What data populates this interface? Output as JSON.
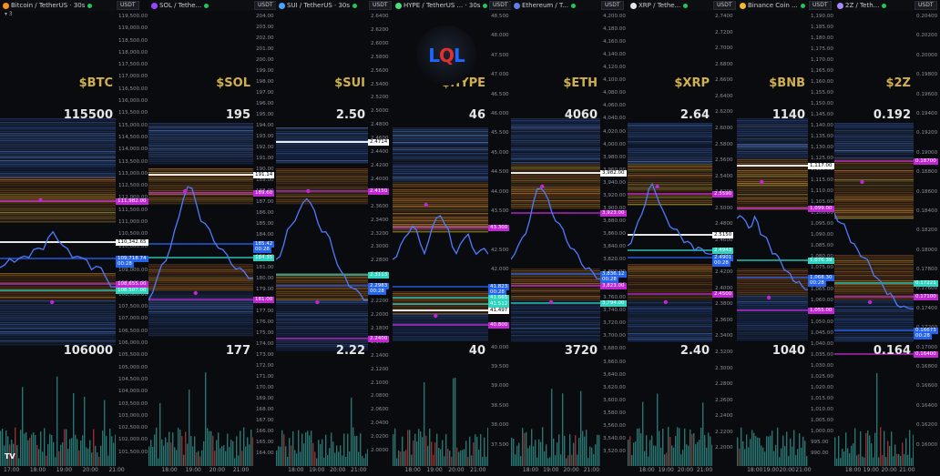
{
  "currency": "USDT",
  "logo": {
    "left": "L",
    "mid": "Q",
    "right": "L"
  },
  "tv_logo": "TV",
  "menu_hint": "▾ 3",
  "time_labels": [
    "17:00",
    "18:00",
    "19:00",
    "20:00",
    "21:00"
  ],
  "panels": [
    {
      "name": "btc",
      "title": "Bitcoin / TetherUS · 30s",
      "coin_color": "#f7931a",
      "ticker": "$BTC",
      "top": "115500",
      "bottom": "106000",
      "yticks": [
        "119,500.00",
        "119,000.00",
        "118,500.00",
        "118,000.00",
        "117,500.00",
        "117,000.00",
        "116,500.00",
        "116,000.00",
        "115,500.00",
        "115,000.00",
        "114,500.00",
        "114,000.00",
        "113,500.00",
        "113,000.00",
        "112,500.00",
        "112,000.00",
        "111,500.00",
        "111,000.00",
        "110,500.00",
        "110,000.00",
        "109,500.00",
        "109,000.00",
        "108,500.00",
        "108,000.00",
        "107,500.00",
        "107,000.00",
        "106,500.00",
        "106,000.00",
        "105,500.00",
        "105,000.00",
        "104,500.00",
        "104,000.00",
        "103,500.00",
        "103,000.00",
        "102,500.00",
        "102,000.00",
        "101,500.00"
      ],
      "tags": [
        {
          "t": "111,982.00",
          "c": "#c026d3"
        },
        {
          "t": "110,342.65",
          "c": "#ffffff"
        },
        {
          "t": "109,718.74",
          "c": "#2563eb"
        },
        {
          "t": "00:28",
          "c": "#2563eb"
        },
        {
          "t": "108,655.00",
          "c": "#c026d3"
        },
        {
          "t": "108,507.00",
          "c": "#2dd4bf"
        }
      ],
      "series": [
        0.42,
        0.44,
        0.45,
        0.43,
        0.46,
        0.47,
        0.45,
        0.48,
        0.5,
        0.49,
        0.52,
        0.55,
        0.53,
        0.5,
        0.48,
        0.46,
        0.47,
        0.45,
        0.44,
        0.42,
        0.43,
        0.41,
        0.38,
        0.36,
        0.35
      ]
    },
    {
      "name": "sol",
      "title": "SOL / Tethe...",
      "coin_color": "#9945ff",
      "ticker": "$SOL",
      "top": "195",
      "bottom": "177",
      "yticks": [
        "204.00",
        "203.00",
        "202.00",
        "201.00",
        "200.00",
        "199.00",
        "198.00",
        "197.00",
        "196.00",
        "195.00",
        "194.00",
        "193.00",
        "192.00",
        "191.00",
        "190.00",
        "189.00",
        "188.00",
        "187.00",
        "186.00",
        "185.00",
        "184.00",
        "183.00",
        "182.00",
        "181.00",
        "180.00",
        "179.00",
        "178.00",
        "177.00",
        "176.00",
        "175.00",
        "174.00",
        "173.00",
        "172.00",
        "171.00",
        "170.00",
        "169.00",
        "168.00",
        "167.00",
        "166.00",
        "165.00",
        "164.00"
      ],
      "tags": [
        {
          "t": "191.14",
          "c": "#ffffff"
        },
        {
          "t": "189.60",
          "c": "#c026d3"
        },
        {
          "t": "185.42",
          "c": "#2563eb"
        },
        {
          "t": "00:28",
          "c": "#2563eb"
        },
        {
          "t": "184.35",
          "c": "#2dd4bf"
        },
        {
          "t": "181.00",
          "c": "#c026d3"
        }
      ],
      "series": [
        0.3,
        0.34,
        0.38,
        0.42,
        0.45,
        0.5,
        0.55,
        0.6,
        0.68,
        0.72,
        0.7,
        0.65,
        0.6,
        0.58,
        0.55,
        0.52,
        0.5,
        0.48,
        0.46,
        0.44,
        0.42,
        0.41,
        0.4,
        0.39,
        0.38
      ]
    },
    {
      "name": "sui",
      "title": "SUI / TetherUS · 30s",
      "coin_color": "#4da2ff",
      "ticker": "$SUI",
      "top": "2.50",
      "bottom": "2.22",
      "yticks": [
        "2.6400",
        "2.6200",
        "2.6000",
        "2.5800",
        "2.5600",
        "2.5400",
        "2.5200",
        "2.5000",
        "2.4800",
        "2.4600",
        "2.4400",
        "2.4200",
        "2.4000",
        "2.3800",
        "2.3600",
        "2.3400",
        "2.3200",
        "2.3000",
        "2.2800",
        "2.2600",
        "2.2400",
        "2.2200",
        "2.2000",
        "2.1800",
        "2.1600",
        "2.1400",
        "2.1200",
        "2.1000",
        "2.0800",
        "2.0600",
        "2.0400",
        "2.0200",
        "2.0000"
      ],
      "tags": [
        {
          "t": "2.4714",
          "c": "#ffffff"
        },
        {
          "t": "2.4150",
          "c": "#c026d3"
        },
        {
          "t": "2.3113",
          "c": "#2dd4bf"
        },
        {
          "t": "2.2983",
          "c": "#2563eb"
        },
        {
          "t": "00:28",
          "c": "#2563eb"
        },
        {
          "t": "2.2400",
          "c": "#c026d3"
        }
      ],
      "series": [
        0.45,
        0.47,
        0.5,
        0.55,
        0.58,
        0.6,
        0.62,
        0.65,
        0.68,
        0.66,
        0.62,
        0.58,
        0.56,
        0.55,
        0.52,
        0.48,
        0.44,
        0.4,
        0.38,
        0.36,
        0.35,
        0.33,
        0.32,
        0.31,
        0.3
      ]
    },
    {
      "name": "hype",
      "title": "HYPE / TetherUS ... · 30s",
      "coin_color": "#4ade80",
      "ticker": "$HYPE",
      "top": "46",
      "bottom": "40",
      "yticks": [
        "48.500",
        "48.000",
        "47.500",
        "47.000",
        "46.500",
        "46.000",
        "45.500",
        "45.000",
        "44.500",
        "44.000",
        "43.500",
        "43.000",
        "42.500",
        "42.000",
        "41.500",
        "41.000",
        "40.500",
        "40.000",
        "39.500",
        "39.000",
        "38.500",
        "38.000",
        "37.500"
      ],
      "tags": [
        {
          "t": "43.300",
          "c": "#c026d3"
        },
        {
          "t": "41.823",
          "c": "#2563eb"
        },
        {
          "t": "00:28",
          "c": "#2563eb"
        },
        {
          "t": "41.665",
          "c": "#2dd4bf"
        },
        {
          "t": "41.512",
          "c": "#2dd4bf"
        },
        {
          "t": "41.497",
          "c": "#ffffff"
        },
        {
          "t": "40.800",
          "c": "#c026d3"
        }
      ],
      "series": [
        0.45,
        0.47,
        0.5,
        0.52,
        0.55,
        0.58,
        0.55,
        0.5,
        0.48,
        0.52,
        0.56,
        0.6,
        0.62,
        0.58,
        0.55,
        0.5,
        0.48,
        0.5,
        0.52,
        0.55,
        0.5,
        0.46,
        0.48,
        0.5,
        0.47
      ]
    },
    {
      "name": "eth",
      "title": "Ethereum / T...",
      "coin_color": "#627eea",
      "ticker": "$ETH",
      "top": "4060",
      "bottom": "3720",
      "yticks": [
        "4,200.00",
        "4,180.00",
        "4,160.00",
        "4,140.00",
        "4,120.00",
        "4,100.00",
        "4,080.00",
        "4,060.00",
        "4,040.00",
        "4,020.00",
        "4,000.00",
        "3,980.00",
        "3,960.00",
        "3,940.00",
        "3,920.00",
        "3,900.00",
        "3,880.00",
        "3,860.00",
        "3,840.00",
        "3,820.00",
        "3,800.00",
        "3,780.00",
        "3,760.00",
        "3,740.00",
        "3,720.00",
        "3,700.00",
        "3,680.00",
        "3,660.00",
        "3,640.00",
        "3,620.00",
        "3,600.00",
        "3,580.00",
        "3,560.00",
        "3,540.00",
        "3,520.00"
      ],
      "tags": [
        {
          "t": "3,982.00",
          "c": "#ffffff"
        },
        {
          "t": "3,923.00",
          "c": "#c026d3"
        },
        {
          "t": "3,836.12",
          "c": "#2563eb"
        },
        {
          "t": "00:28",
          "c": "#2563eb"
        },
        {
          "t": "3,823.00",
          "c": "#c026d3"
        },
        {
          "t": "3,794.00",
          "c": "#2dd4bf"
        }
      ],
      "series": [
        0.45,
        0.48,
        0.5,
        0.52,
        0.55,
        0.6,
        0.65,
        0.7,
        0.72,
        0.7,
        0.66,
        0.62,
        0.6,
        0.58,
        0.55,
        0.52,
        0.5,
        0.48,
        0.46,
        0.44,
        0.42,
        0.41,
        0.4,
        0.39,
        0.38
      ]
    },
    {
      "name": "xrp",
      "title": "XRP / Tethe...",
      "coin_color": "#e5e7eb",
      "ticker": "$XRP",
      "top": "2.64",
      "bottom": "2.40",
      "yticks": [
        "2.7400",
        "2.7200",
        "2.7000",
        "2.6800",
        "2.6600",
        "2.6400",
        "2.6200",
        "2.6000",
        "2.5800",
        "2.5600",
        "2.5400",
        "2.5200",
        "2.5000",
        "2.4800",
        "2.4600",
        "2.4400",
        "2.4200",
        "2.4000",
        "2.3800",
        "2.3600",
        "2.3400",
        "2.3200",
        "2.3000",
        "2.2800",
        "2.2600",
        "2.2400",
        "2.2200",
        "2.2000"
      ],
      "tags": [
        {
          "t": "2.5590",
          "c": "#c026d3"
        },
        {
          "t": "2.5150",
          "c": "#ffffff"
        },
        {
          "t": "2.4943",
          "c": "#2dd4bf"
        },
        {
          "t": "2.4901",
          "c": "#2563eb"
        },
        {
          "t": "00:28",
          "c": "#2563eb"
        },
        {
          "t": "2.4500",
          "c": "#c026d3"
        }
      ],
      "series": [
        0.5,
        0.52,
        0.55,
        0.58,
        0.62,
        0.66,
        0.7,
        0.72,
        0.7,
        0.66,
        0.62,
        0.6,
        0.58,
        0.56,
        0.55,
        0.54,
        0.52,
        0.51,
        0.5,
        0.49,
        0.5,
        0.48,
        0.47,
        0.48,
        0.47
      ]
    },
    {
      "name": "bnb",
      "title": "Binance Coin ...",
      "coin_color": "#f3ba2f",
      "ticker": "$BNB",
      "top": "1140",
      "bottom": "1040",
      "yticks": [
        "1,190.00",
        "1,185.00",
        "1,180.00",
        "1,175.00",
        "1,170.00",
        "1,165.00",
        "1,160.00",
        "1,155.00",
        "1,150.00",
        "1,145.00",
        "1,140.00",
        "1,135.00",
        "1,130.00",
        "1,125.00",
        "1,120.00",
        "1,115.00",
        "1,110.00",
        "1,105.00",
        "1,100.00",
        "1,095.00",
        "1,090.00",
        "1,085.00",
        "1,080.00",
        "1,075.00",
        "1,070.00",
        "1,065.00",
        "1,060.00",
        "1,055.00",
        "1,050.00",
        "1,045.00",
        "1,040.00",
        "1,035.00",
        "1,030.00",
        "1,025.00",
        "1,020.00",
        "1,015.00",
        "1,010.00",
        "1,005.00",
        "1,000.00",
        "995.00",
        "990.00"
      ],
      "tags": [
        {
          "t": "1,117.00",
          "c": "#ffffff"
        },
        {
          "t": "1,099.00",
          "c": "#c026d3"
        },
        {
          "t": "1,076.39",
          "c": "#2dd4bf"
        },
        {
          "t": "1,068.30",
          "c": "#2563eb"
        },
        {
          "t": "00:28",
          "c": "#2563eb"
        },
        {
          "t": "1,055.00",
          "c": "#c026d3"
        }
      ],
      "series": [
        0.6,
        0.62,
        0.6,
        0.58,
        0.57,
        0.58,
        0.6,
        0.58,
        0.55,
        0.54,
        0.52,
        0.5,
        0.48,
        0.47,
        0.45,
        0.44,
        0.42,
        0.4,
        0.39,
        0.38,
        0.37,
        0.36,
        0.35,
        0.35,
        0.34
      ]
    },
    {
      "name": "2z",
      "title": "2Z / Teth...",
      "coin_color": "#a78bfa",
      "ticker": "$2Z",
      "top": "0.192",
      "bottom": "0.164",
      "yticks": [
        "0.20400",
        "0.20200",
        "0.20000",
        "0.19800",
        "0.19600",
        "0.19400",
        "0.19200",
        "0.19000",
        "0.18800",
        "0.18600",
        "0.18400",
        "0.18200",
        "0.18000",
        "0.17800",
        "0.17600",
        "0.17400",
        "0.17200",
        "0.17000",
        "0.16800",
        "0.16600",
        "0.16400",
        "0.16200",
        "0.16000"
      ],
      "tags": [
        {
          "t": "0.18700",
          "c": "#c026d3"
        },
        {
          "t": "0.17221",
          "c": "#2dd4bf"
        },
        {
          "t": "0.17100",
          "c": "#c026d3"
        },
        {
          "t": "0.16673",
          "c": "#2563eb"
        },
        {
          "t": "00:28",
          "c": "#2563eb"
        },
        {
          "t": "0.16400",
          "c": "#c026d3"
        }
      ],
      "series": [
        0.62,
        0.6,
        0.58,
        0.57,
        0.55,
        0.52,
        0.5,
        0.48,
        0.47,
        0.46,
        0.44,
        0.42,
        0.4,
        0.38,
        0.36,
        0.35,
        0.33,
        0.32,
        0.3,
        0.29,
        0.28,
        0.27,
        0.27,
        0.28,
        0.27
      ]
    }
  ]
}
